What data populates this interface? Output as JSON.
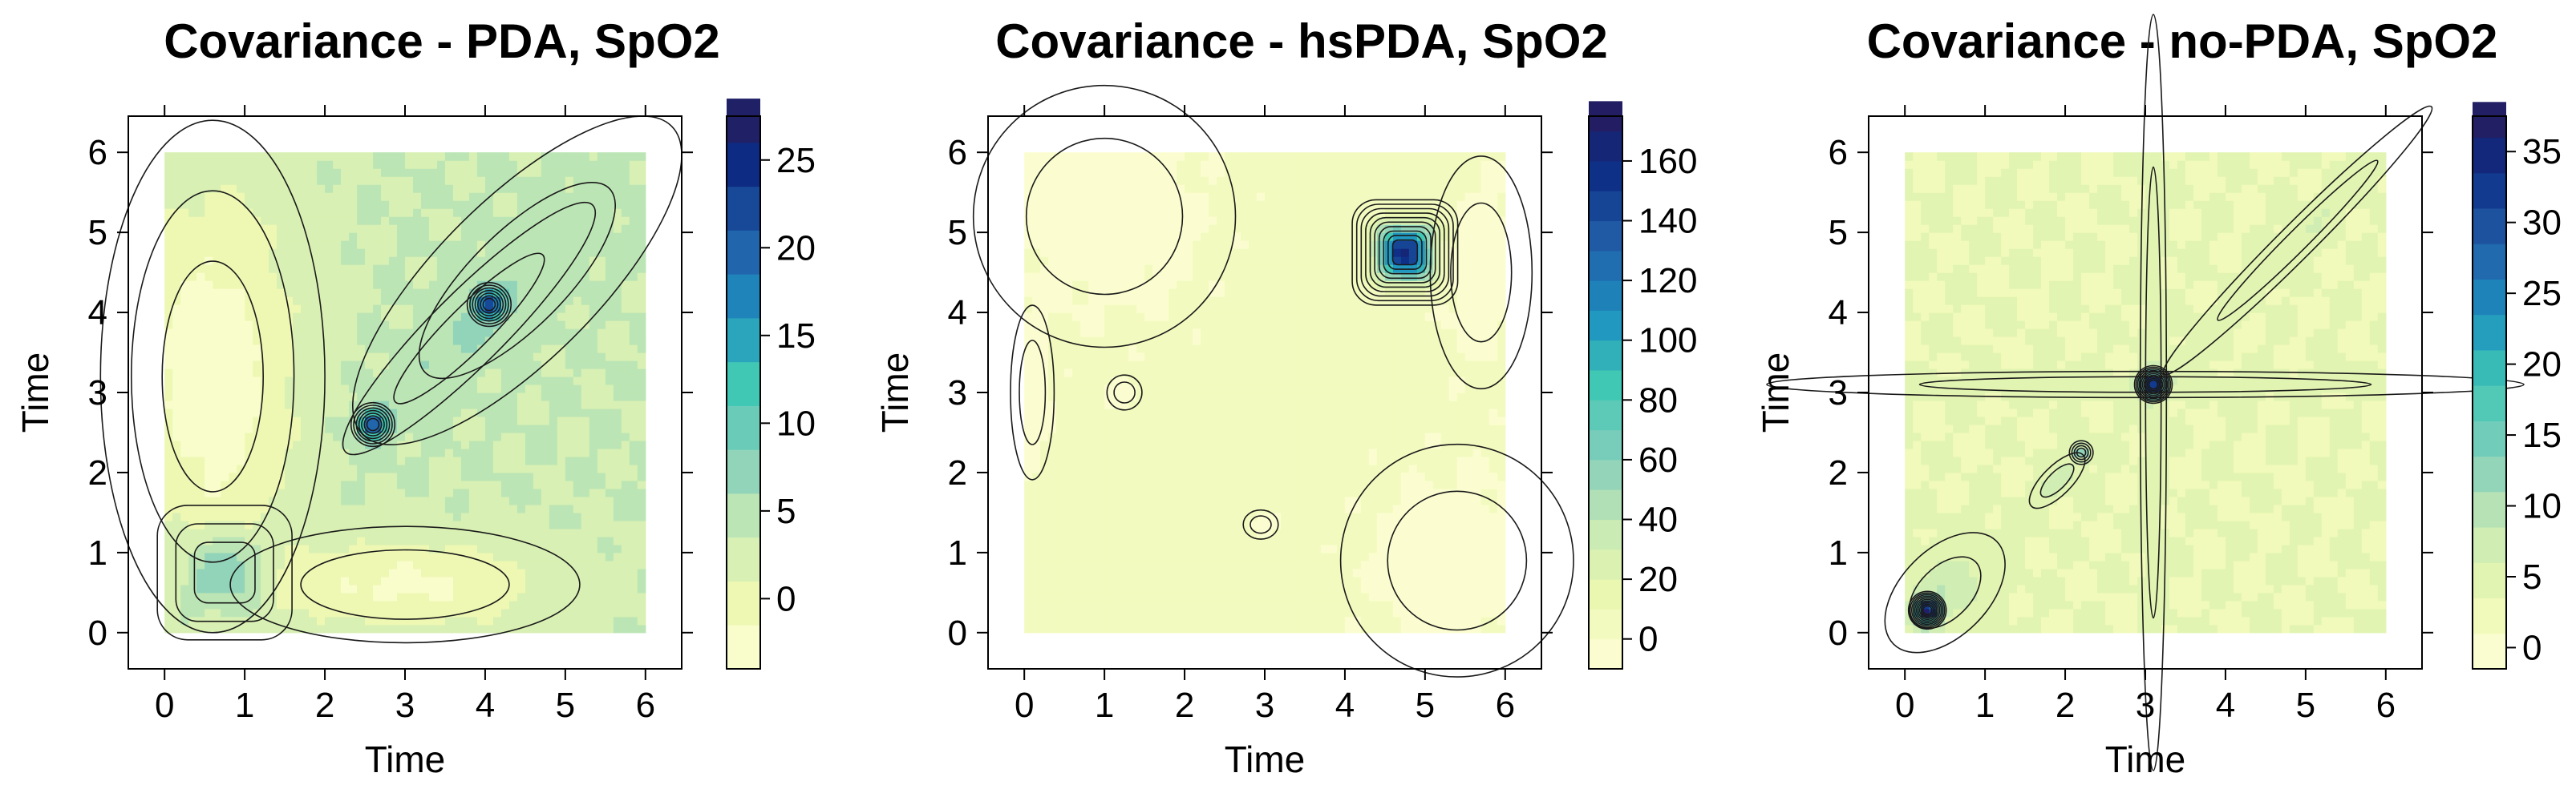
{
  "chart_data": [
    {
      "type": "heatmap",
      "title": "Covariance - PDA, SpO2",
      "xlabel": "Time",
      "ylabel": "Time",
      "xlim": [
        0,
        6
      ],
      "ylim": [
        0,
        6
      ],
      "x_ticks": [
        "0",
        "1",
        "2",
        "3",
        "4",
        "5",
        "6"
      ],
      "y_ticks": [
        "0",
        "1",
        "2",
        "3",
        "4",
        "5",
        "6"
      ],
      "colorbar": {
        "min": -4,
        "max": 27.5,
        "step": 2.5,
        "ticks": [
          "0",
          "5",
          "10",
          "15",
          "20",
          "25"
        ],
        "tick_values": [
          0,
          5,
          10,
          15,
          20,
          25
        ]
      },
      "baseline": 3.5,
      "features": [
        {
          "x": 2.6,
          "y": 2.6,
          "sx": 0.12,
          "sy": 0.12,
          "value": 22
        },
        {
          "x": 4.05,
          "y": 4.1,
          "sx": 0.12,
          "sy": 0.12,
          "value": 20
        },
        {
          "x": 0.75,
          "y": 0.75,
          "sx": 0.42,
          "sy": 0.42,
          "value": 11,
          "shape": "square"
        },
        {
          "x": 3.8,
          "y": 3.8,
          "sx": 1.2,
          "sy": 0.25,
          "value": 6,
          "diag": true
        },
        {
          "x": 4.4,
          "y": 4.4,
          "sx": 1.5,
          "sy": 0.55,
          "value": 4,
          "diag": true
        },
        {
          "x": 0.6,
          "y": 3.2,
          "sx": 0.7,
          "sy": 1.6,
          "value": -3.5
        },
        {
          "x": 3.0,
          "y": 0.6,
          "sx": 1.2,
          "sy": 0.4,
          "value": -2
        }
      ]
    },
    {
      "type": "heatmap",
      "title": "Covariance - hsPDA, SpO2",
      "xlabel": "Time",
      "ylabel": "Time",
      "xlim": [
        0,
        6
      ],
      "ylim": [
        0,
        6
      ],
      "x_ticks": [
        "0",
        "1",
        "2",
        "3",
        "4",
        "5",
        "6"
      ],
      "y_ticks": [
        "0",
        "1",
        "2",
        "3",
        "4",
        "5",
        "6"
      ],
      "colorbar": {
        "min": -10,
        "max": 175,
        "step": 10,
        "ticks": [
          "0",
          "20",
          "40",
          "60",
          "80",
          "100",
          "120",
          "140",
          "160"
        ],
        "tick_values": [
          0,
          20,
          40,
          60,
          80,
          100,
          120,
          140,
          160
        ]
      },
      "baseline": 3,
      "features": [
        {
          "x": 4.75,
          "y": 4.75,
          "sx": 0.28,
          "sy": 0.28,
          "value": 168,
          "shape": "square"
        },
        {
          "x": 1.0,
          "y": 5.2,
          "sx": 0.9,
          "sy": 0.9,
          "value": -5
        },
        {
          "x": 5.4,
          "y": 0.9,
          "sx": 0.8,
          "sy": 0.8,
          "value": -5
        },
        {
          "x": 0.1,
          "y": 3.0,
          "sx": 0.15,
          "sy": 0.6,
          "value": -5
        },
        {
          "x": 1.25,
          "y": 3.0,
          "sx": 0.12,
          "sy": 0.12,
          "value": -6
        },
        {
          "x": 2.95,
          "y": 1.35,
          "sx": 0.12,
          "sy": 0.1,
          "value": -6
        },
        {
          "x": 5.7,
          "y": 4.5,
          "sx": 0.35,
          "sy": 0.8,
          "value": -5
        }
      ]
    },
    {
      "type": "heatmap",
      "title": "Covariance - no-PDA, SpO2",
      "xlabel": "Time",
      "ylabel": "Time",
      "xlim": [
        0,
        6
      ],
      "ylim": [
        0,
        6
      ],
      "x_ticks": [
        "0",
        "1",
        "2",
        "3",
        "4",
        "5",
        "6"
      ],
      "y_ticks": [
        "0",
        "1",
        "2",
        "3",
        "4",
        "5",
        "6"
      ],
      "colorbar": {
        "min": -1.5,
        "max": 37.5,
        "step": 2.5,
        "ticks": [
          "0",
          "5",
          "10",
          "15",
          "20",
          "25",
          "30",
          "35"
        ],
        "tick_values": [
          0,
          5,
          10,
          15,
          20,
          25,
          30,
          35
        ]
      },
      "baseline": 3.5,
      "features": [
        {
          "x": 3.1,
          "y": 3.1,
          "sx": 0.1,
          "sy": 0.1,
          "value": 36
        },
        {
          "x": 0.28,
          "y": 0.28,
          "sx": 0.1,
          "sy": 0.1,
          "value": 36
        },
        {
          "x": 2.2,
          "y": 2.25,
          "sx": 0.07,
          "sy": 0.07,
          "value": 14
        },
        {
          "x": 1.9,
          "y": 1.9,
          "sx": 0.25,
          "sy": 0.1,
          "value": 8,
          "diag": true
        },
        {
          "x": 3.1,
          "y": 3.0,
          "sx": 0.09,
          "sy": 2.6,
          "value": 5
        },
        {
          "x": 3.0,
          "y": 3.1,
          "sx": 2.6,
          "sy": 0.09,
          "value": 5
        },
        {
          "x": 4.9,
          "y": 4.9,
          "sx": 1.3,
          "sy": 0.12,
          "value": 6,
          "diag": true
        },
        {
          "x": 0.5,
          "y": 0.5,
          "sx": 0.5,
          "sy": 0.3,
          "value": 8,
          "diag": true
        }
      ]
    }
  ]
}
